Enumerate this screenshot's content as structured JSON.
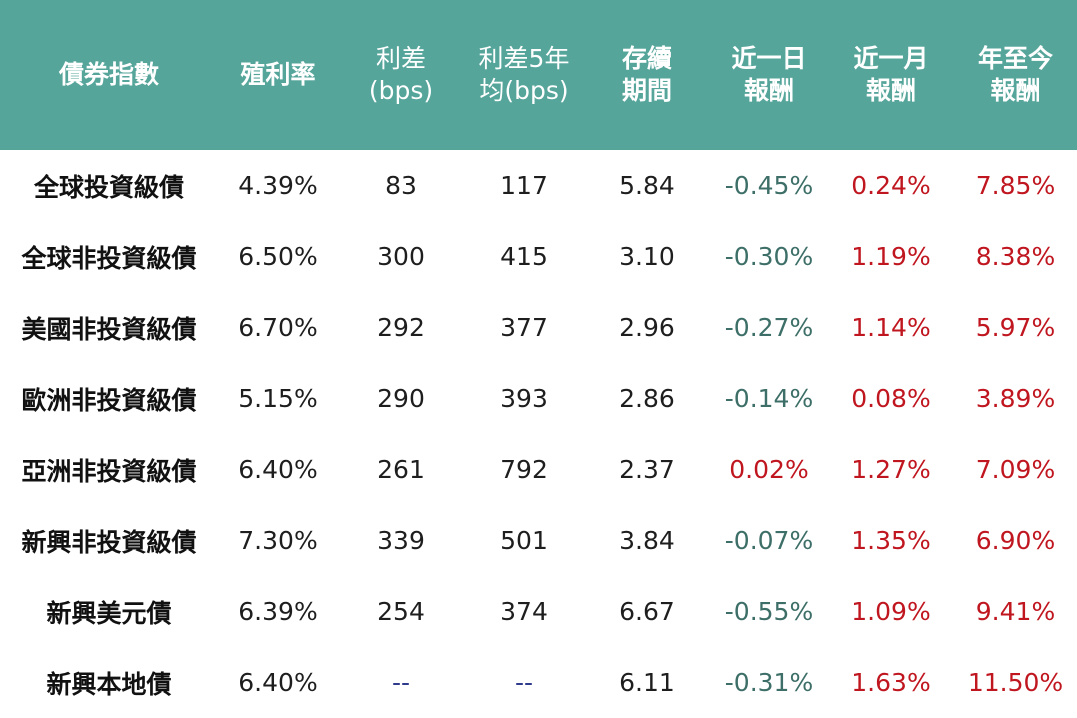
{
  "header": {
    "name": "債券指數",
    "yield": "殖利率",
    "spread": "利差\n(bps)",
    "spread_avg": "利差5年\n均(bps)",
    "duration": "存續\n期間",
    "return_1d": "近一日\n報酬",
    "return_1m": "近一月\n報酬",
    "return_ytd": "年至今\n報酬"
  },
  "rows": [
    {
      "name": "全球投資級債",
      "yield": "4.39%",
      "spread": "83",
      "spread_avg": "117",
      "duration": "5.84",
      "return_1d": "-0.45%",
      "return_1m": "0.24%",
      "return_ytd": "7.85%"
    },
    {
      "name": "全球非投資級債",
      "yield": "6.50%",
      "spread": "300",
      "spread_avg": "415",
      "duration": "3.10",
      "return_1d": "-0.30%",
      "return_1m": "1.19%",
      "return_ytd": "8.38%"
    },
    {
      "name": "美國非投資級債",
      "yield": "6.70%",
      "spread": "292",
      "spread_avg": "377",
      "duration": "2.96",
      "return_1d": "-0.27%",
      "return_1m": "1.14%",
      "return_ytd": "5.97%"
    },
    {
      "name": "歐洲非投資級債",
      "yield": "5.15%",
      "spread": "290",
      "spread_avg": "393",
      "duration": "2.86",
      "return_1d": "-0.14%",
      "return_1m": "0.08%",
      "return_ytd": "3.89%"
    },
    {
      "name": "亞洲非投資級債",
      "yield": "6.40%",
      "spread": "261",
      "spread_avg": "792",
      "duration": "2.37",
      "return_1d": "0.02%",
      "return_1m": "1.27%",
      "return_ytd": "7.09%"
    },
    {
      "name": "新興非投資級債",
      "yield": "7.30%",
      "spread": "339",
      "spread_avg": "501",
      "duration": "3.84",
      "return_1d": "-0.07%",
      "return_1m": "1.35%",
      "return_ytd": "6.90%"
    },
    {
      "name": "新興美元債",
      "yield": "6.39%",
      "spread": "254",
      "spread_avg": "374",
      "duration": "6.67",
      "return_1d": "-0.55%",
      "return_1m": "1.09%",
      "return_ytd": "9.41%"
    },
    {
      "name": "新興本地債",
      "yield": "6.40%",
      "spread": "--",
      "spread_avg": "--",
      "duration": "6.11",
      "return_1d": "-0.31%",
      "return_1m": "1.63%",
      "return_ytd": "11.50%"
    }
  ],
  "colors": {
    "header_bg": "#55a59b",
    "header_text": "#ffffff",
    "negative": "#3d6f68",
    "positive": "#c0161f",
    "dash": "#2e3a8c"
  }
}
